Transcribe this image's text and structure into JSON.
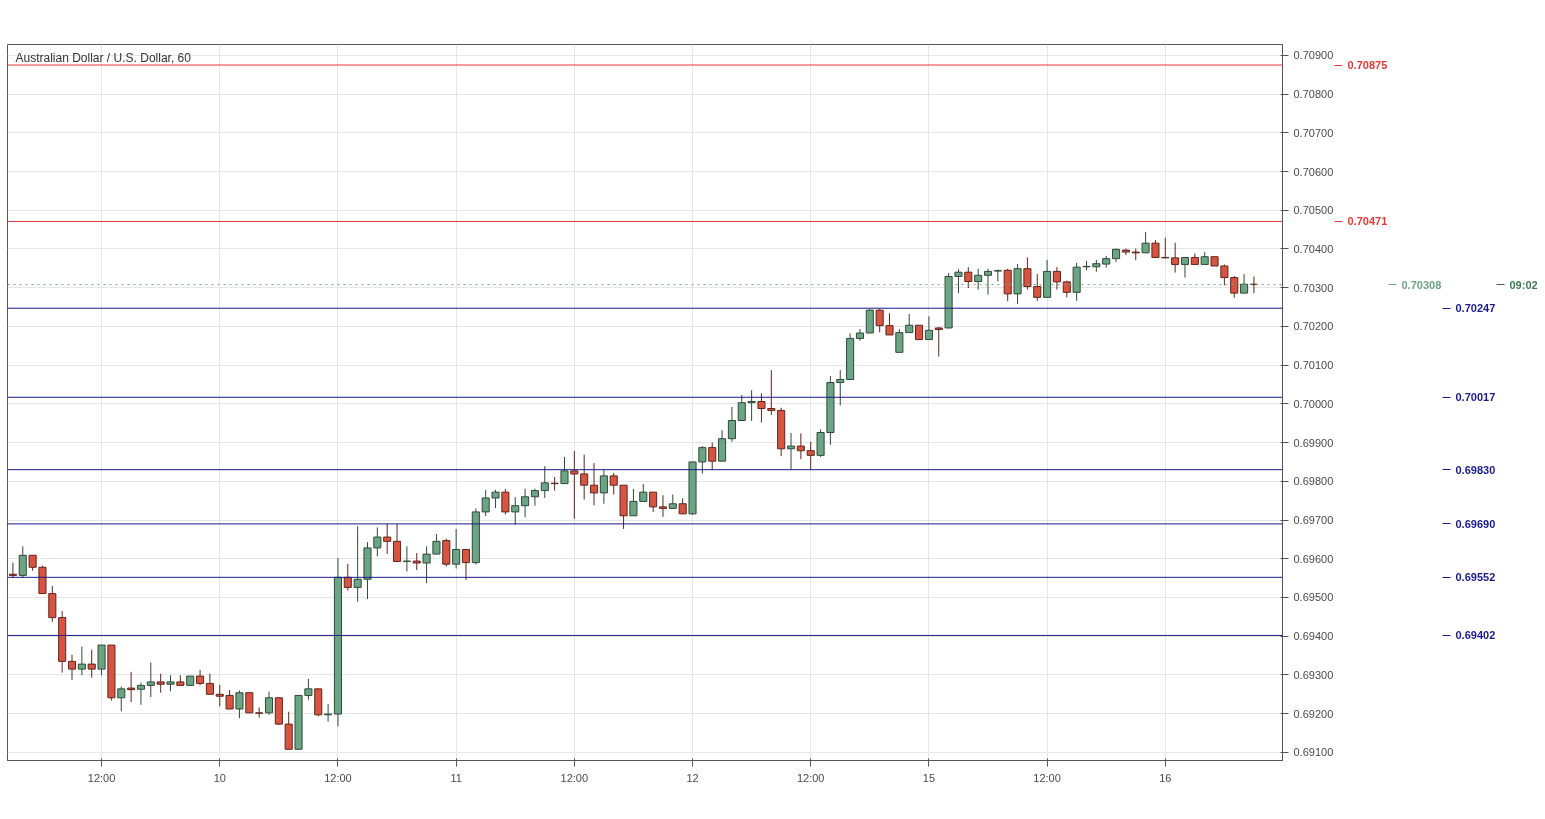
{
  "chart_data": {
    "type": "candlestick",
    "title": "Australian Dollar / U.S. Dollar, 60",
    "categories": [
      null,
      null,
      null,
      null,
      null,
      null,
      null,
      null,
      null,
      "12:00",
      null,
      null,
      null,
      null,
      null,
      null,
      null,
      null,
      null,
      null,
      null,
      "10",
      null,
      null,
      null,
      null,
      null,
      null,
      null,
      null,
      null,
      null,
      null,
      "12:00",
      null,
      null,
      null,
      null,
      null,
      null,
      null,
      null,
      null,
      null,
      null,
      "11",
      null,
      null,
      null,
      null,
      null,
      null,
      null,
      null,
      null,
      null,
      null,
      "12:00",
      null,
      null,
      null,
      null,
      null,
      null,
      null,
      null,
      null,
      null,
      null,
      "12",
      null,
      null,
      null,
      null,
      null,
      null,
      null,
      null,
      null,
      null,
      null,
      "12:00",
      null,
      null,
      null,
      null,
      null,
      null,
      null,
      null,
      null,
      null,
      null,
      "15",
      null,
      null,
      null,
      null,
      null,
      null,
      null,
      null,
      null,
      null,
      null,
      "12:00",
      null,
      null,
      null,
      null,
      null,
      null,
      null,
      null,
      null,
      null,
      null,
      "16",
      null,
      null,
      null,
      null,
      null,
      null,
      null,
      null,
      null
    ],
    "ohlc": [
      [
        0.6956,
        0.6959,
        0.6955,
        0.69557
      ],
      [
        0.69557,
        0.69632,
        0.69551,
        0.69609
      ],
      [
        0.69609,
        0.69609,
        0.69569,
        0.69578
      ],
      [
        0.69578,
        0.69582,
        0.6951,
        0.6951
      ],
      [
        0.6951,
        0.6953,
        0.69437,
        0.69448
      ],
      [
        0.69448,
        0.69465,
        0.69306,
        0.69335
      ],
      [
        0.69335,
        0.69352,
        0.69287,
        0.69315
      ],
      [
        0.69315,
        0.69373,
        0.69299,
        0.69328
      ],
      [
        0.69328,
        0.69365,
        0.69293,
        0.69315
      ],
      [
        0.69315,
        0.69377,
        0.69299,
        0.69377
      ],
      [
        0.69377,
        0.69377,
        0.69234,
        0.69241
      ],
      [
        0.69241,
        0.6927,
        0.69206,
        0.69264
      ],
      [
        0.69266,
        0.69308,
        0.6923,
        0.69262
      ],
      [
        0.69263,
        0.6928,
        0.69223,
        0.69273
      ],
      [
        0.69273,
        0.69332,
        0.69243,
        0.69282
      ],
      [
        0.69282,
        0.69303,
        0.69254,
        0.69276
      ],
      [
        0.69276,
        0.69299,
        0.69258,
        0.69282
      ],
      [
        0.69282,
        0.69299,
        0.69273,
        0.69273
      ],
      [
        0.69273,
        0.69297,
        0.69273,
        0.69297
      ],
      [
        0.69297,
        0.69313,
        0.69273,
        0.69278
      ],
      [
        0.69278,
        0.69303,
        0.6925,
        0.6925
      ],
      [
        0.6925,
        0.69274,
        0.69219,
        0.69245
      ],
      [
        0.69247,
        0.69261,
        0.69212,
        0.69212
      ],
      [
        0.69212,
        0.6926,
        0.69188,
        0.69254
      ],
      [
        0.69254,
        0.69254,
        0.69202,
        0.69202
      ],
      [
        0.69202,
        0.69216,
        0.6919,
        0.69201
      ],
      [
        0.69202,
        0.69257,
        0.69197,
        0.69241
      ],
      [
        0.69241,
        0.69241,
        0.69171,
        0.69173
      ],
      [
        0.69173,
        0.69205,
        0.69108,
        0.69108
      ],
      [
        0.69108,
        0.69248,
        0.69108,
        0.69247
      ],
      [
        0.69247,
        0.6929,
        0.69236,
        0.69264
      ],
      [
        0.69264,
        0.69264,
        0.69193,
        0.69197
      ],
      [
        0.69197,
        0.69225,
        0.69179,
        0.69199
      ],
      [
        0.69199,
        0.69602,
        0.69167,
        0.69552
      ],
      [
        0.69552,
        0.69587,
        0.69518,
        0.69526
      ],
      [
        0.69526,
        0.69684,
        0.69489,
        0.69547
      ],
      [
        0.69547,
        0.69643,
        0.69496,
        0.69628
      ],
      [
        0.69628,
        0.69681,
        0.69606,
        0.69656
      ],
      [
        0.69656,
        0.6969,
        0.69612,
        0.69645
      ],
      [
        0.69645,
        0.6969,
        0.69593,
        0.69593
      ],
      [
        0.69593,
        0.69632,
        0.69567,
        0.69594
      ],
      [
        0.69594,
        0.69615,
        0.69571,
        0.69589
      ],
      [
        0.69589,
        0.69632,
        0.69537,
        0.69612
      ],
      [
        0.69612,
        0.69664,
        0.69612,
        0.69645
      ],
      [
        0.69647,
        0.69652,
        0.6958,
        0.69586
      ],
      [
        0.69586,
        0.69677,
        0.69575,
        0.69624
      ],
      [
        0.69624,
        0.69624,
        0.69545,
        0.6959
      ],
      [
        0.6959,
        0.6973,
        0.69585,
        0.69721
      ],
      [
        0.69721,
        0.69778,
        0.6971,
        0.69757
      ],
      [
        0.69757,
        0.69778,
        0.69731,
        0.69772
      ],
      [
        0.69772,
        0.6978,
        0.69714,
        0.69721
      ],
      [
        0.69721,
        0.69759,
        0.69688,
        0.69737
      ],
      [
        0.69737,
        0.69781,
        0.69707,
        0.6976
      ],
      [
        0.6976,
        0.69781,
        0.69737,
        0.69776
      ],
      [
        0.69776,
        0.69839,
        0.69757,
        0.69796
      ],
      [
        0.69795,
        0.69811,
        0.69776,
        0.69794
      ],
      [
        0.69794,
        0.69863,
        0.69794,
        0.69827
      ],
      [
        0.69827,
        0.69878,
        0.69703,
        0.69819
      ],
      [
        0.69819,
        0.69869,
        0.69753,
        0.6979
      ],
      [
        0.6979,
        0.69847,
        0.69738,
        0.6977
      ],
      [
        0.6977,
        0.6983,
        0.69742,
        0.69814
      ],
      [
        0.69814,
        0.69822,
        0.69766,
        0.6979
      ],
      [
        0.6979,
        0.6979,
        0.69677,
        0.69711
      ],
      [
        0.69711,
        0.6978,
        0.69711,
        0.69748
      ],
      [
        0.69748,
        0.69793,
        0.69748,
        0.69772
      ],
      [
        0.69772,
        0.69772,
        0.69721,
        0.69734
      ],
      [
        0.69734,
        0.69764,
        0.69708,
        0.6973
      ],
      [
        0.6973,
        0.69766,
        0.69729,
        0.69742
      ],
      [
        0.69742,
        0.69756,
        0.69716,
        0.69716
      ],
      [
        0.69716,
        0.6985,
        0.69713,
        0.6985
      ],
      [
        0.6985,
        0.69891,
        0.6982,
        0.69887
      ],
      [
        0.69887,
        0.699,
        0.69829,
        0.69852
      ],
      [
        0.69852,
        0.69932,
        0.69852,
        0.6991
      ],
      [
        0.6991,
        0.69992,
        0.69902,
        0.69957
      ],
      [
        0.69957,
        0.70023,
        0.69957,
        0.70003
      ],
      [
        0.70003,
        0.70035,
        0.69956,
        0.70006
      ],
      [
        0.70006,
        0.70027,
        0.69952,
        0.69988
      ],
      [
        0.69988,
        0.70087,
        0.69971,
        0.69983
      ],
      [
        0.69983,
        0.6999,
        0.69865,
        0.69884
      ],
      [
        0.69884,
        0.69925,
        0.6983,
        0.69891
      ],
      [
        0.69891,
        0.69924,
        0.69857,
        0.69879
      ],
      [
        0.69879,
        0.69902,
        0.6983,
        0.69867
      ],
      [
        0.69867,
        0.69934,
        0.69863,
        0.69926
      ],
      [
        0.69926,
        0.70072,
        0.69894,
        0.70055
      ],
      [
        0.70055,
        0.70087,
        0.69996,
        0.70063
      ],
      [
        0.70063,
        0.70182,
        0.70063,
        0.70169
      ],
      [
        0.70169,
        0.70193,
        0.70163,
        0.70183
      ],
      [
        0.70183,
        0.70245,
        0.70183,
        0.70242
      ],
      [
        0.70242,
        0.70245,
        0.70185,
        0.70202
      ],
      [
        0.70202,
        0.70234,
        0.70178,
        0.70178
      ],
      [
        0.70133,
        0.70193,
        0.70133,
        0.70184
      ],
      [
        0.70184,
        0.70232,
        0.70184,
        0.70203
      ],
      [
        0.70203,
        0.70203,
        0.70166,
        0.70166
      ],
      [
        0.70166,
        0.70226,
        0.70166,
        0.7019
      ],
      [
        0.70196,
        0.70198,
        0.70122,
        0.70192
      ],
      [
        0.70196,
        0.70338,
        0.70195,
        0.70329
      ],
      [
        0.70329,
        0.70348,
        0.70286,
        0.7034
      ],
      [
        0.7034,
        0.70353,
        0.70299,
        0.70316
      ],
      [
        0.70316,
        0.70349,
        0.70295,
        0.70332
      ],
      [
        0.70332,
        0.70349,
        0.70282,
        0.70342
      ],
      [
        0.70343,
        0.70347,
        0.70316,
        0.70344
      ],
      [
        0.70345,
        0.70349,
        0.70265,
        0.70284
      ],
      [
        0.70284,
        0.70361,
        0.70258,
        0.70349
      ],
      [
        0.70349,
        0.70378,
        0.70295,
        0.70303
      ],
      [
        0.70303,
        0.70335,
        0.70266,
        0.70275
      ],
      [
        0.70275,
        0.70372,
        0.70275,
        0.70342
      ],
      [
        0.70342,
        0.70353,
        0.70295,
        0.70315
      ],
      [
        0.70315,
        0.70318,
        0.70275,
        0.70288
      ],
      [
        0.70288,
        0.70364,
        0.70266,
        0.70353
      ],
      [
        0.70354,
        0.70369,
        0.70345,
        0.70355
      ],
      [
        0.70354,
        0.70372,
        0.70341,
        0.70362
      ],
      [
        0.70361,
        0.70382,
        0.70352,
        0.70375
      ],
      [
        0.70375,
        0.70401,
        0.70366,
        0.70399
      ],
      [
        0.70397,
        0.70401,
        0.70384,
        0.70392
      ],
      [
        0.70392,
        0.70401,
        0.70371,
        0.7039
      ],
      [
        0.7039,
        0.70444,
        0.7039,
        0.70415
      ],
      [
        0.70415,
        0.70423,
        0.70378,
        0.70378
      ],
      [
        0.70378,
        0.70429,
        0.70376,
        0.70377
      ],
      [
        0.70377,
        0.70416,
        0.70339,
        0.7036
      ],
      [
        0.7036,
        0.70378,
        0.70326,
        0.70378
      ],
      [
        0.70378,
        0.70388,
        0.7036,
        0.7036
      ],
      [
        0.7036,
        0.70392,
        0.7036,
        0.7038
      ],
      [
        0.7038,
        0.7038,
        0.70356,
        0.70356
      ],
      [
        0.70356,
        0.7036,
        0.70306,
        0.70326
      ],
      [
        0.70326,
        0.7033,
        0.70274,
        0.70286
      ],
      [
        0.70286,
        0.70335,
        0.70286,
        0.70309
      ],
      [
        0.70309,
        0.70329,
        0.70286,
        0.70308
      ]
    ],
    "colors": [
      "#d75442",
      "#6ba583",
      "#d75442",
      "#d75442",
      "#d75442",
      "#d75442",
      "#d75442",
      "#6ba583",
      "#d75442",
      "#6ba583",
      "#d75442",
      "#6ba583",
      "#d75442",
      "#6ba583",
      "#6ba583",
      "#d75442",
      "#6ba583",
      "#d75442",
      "#6ba583",
      "#d75442",
      "#d75442",
      "#d75442",
      "#d75442",
      "#6ba583",
      "#d75442",
      "#d75442",
      "#6ba583",
      "#d75442",
      "#d75442",
      "#6ba583",
      "#6ba583",
      "#d75442",
      "#6ba583",
      "#6ba583",
      "#d75442",
      "#6ba583",
      "#6ba583",
      "#6ba583",
      "#d75442",
      "#d75442",
      "#6ba583",
      "#d75442",
      "#6ba583",
      "#6ba583",
      "#d75442",
      "#6ba583",
      "#d75442",
      "#6ba583",
      "#6ba583",
      "#6ba583",
      "#d75442",
      "#6ba583",
      "#6ba583",
      "#6ba583",
      "#6ba583",
      "#d75442",
      "#6ba583",
      "#d75442",
      "#d75442",
      "#d75442",
      "#6ba583",
      "#d75442",
      "#d75442",
      "#6ba583",
      "#6ba583",
      "#d75442",
      "#d75442",
      "#6ba583",
      "#d75442",
      "#6ba583",
      "#6ba583",
      "#d75442",
      "#6ba583",
      "#6ba583",
      "#6ba583",
      "#6ba583",
      "#d75442",
      "#d75442",
      "#d75442",
      "#6ba583",
      "#d75442",
      "#d75442",
      "#6ba583",
      "#6ba583",
      "#6ba583",
      "#6ba583",
      "#6ba583",
      "#6ba583",
      "#d75442",
      "#d75442",
      "#6ba583",
      "#6ba583",
      "#d75442",
      "#6ba583",
      "#d75442",
      "#6ba583",
      "#6ba583",
      "#d75442",
      "#6ba583",
      "#6ba583",
      "#6ba583",
      "#d75442",
      "#6ba583",
      "#d75442",
      "#d75442",
      "#6ba583",
      "#d75442",
      "#d75442",
      "#6ba583",
      "#6ba583",
      "#6ba583",
      "#6ba583",
      "#6ba583",
      "#d75442",
      "#d75442",
      "#6ba583",
      "#d75442",
      "#d75442",
      "#d75442",
      "#6ba583",
      "#d75442",
      "#6ba583",
      "#d75442",
      "#d75442",
      "#d75442",
      "#6ba583",
      "#d75442"
    ],
    "ylim": [
      0.69079,
      0.70928
    ],
    "yticks": [
      {
        "value": 0.691,
        "label": "0.69100"
      },
      {
        "value": 0.692,
        "label": "0.69200"
      },
      {
        "value": 0.693,
        "label": "0.69300"
      },
      {
        "value": 0.694,
        "label": "0.69400"
      },
      {
        "value": 0.695,
        "label": "0.69500"
      },
      {
        "value": 0.696,
        "label": "0.69600"
      },
      {
        "value": 0.697,
        "label": "0.69700"
      },
      {
        "value": 0.698,
        "label": "0.69800"
      },
      {
        "value": 0.699,
        "label": "0.69900"
      },
      {
        "value": 0.7,
        "label": "0.70000"
      },
      {
        "value": 0.701,
        "label": "0.70100"
      },
      {
        "value": 0.702,
        "label": "0.70200"
      },
      {
        "value": 0.703,
        "label": "0.70300"
      },
      {
        "value": 0.704,
        "label": "0.70400"
      },
      {
        "value": 0.705,
        "label": "0.70500"
      },
      {
        "value": 0.706,
        "label": "0.70600"
      },
      {
        "value": 0.707,
        "label": "0.70700"
      },
      {
        "value": 0.708,
        "label": "0.70800"
      },
      {
        "value": 0.709,
        "label": "0.70900"
      }
    ],
    "ref_lines": [
      {
        "axis": "y",
        "value": 0.70875,
        "label": "0.70875",
        "color": "#e53935"
      },
      {
        "axis": "y",
        "value": 0.70471,
        "label": "0.70471",
        "color": "#e53935"
      },
      {
        "axis": "y",
        "value": 0.70308,
        "label": "0.70308",
        "color": "#6ba583",
        "line_style": "dotted"
      },
      {
        "axis": "y",
        "value": 0.70247,
        "label": "0.70247",
        "color": "#1a1a8c"
      },
      {
        "axis": "y",
        "value": 0.70017,
        "label": "0.70017",
        "color": "#1a1a8c"
      },
      {
        "axis": "y",
        "value": 0.6983,
        "label": "0.69830",
        "color": "#1a1a8c"
      },
      {
        "axis": "y",
        "value": 0.6969,
        "label": "0.69690",
        "color": "#1a1a8c"
      },
      {
        "axis": "y",
        "value": 0.69552,
        "label": "0.69552",
        "color": "#1a1a8c"
      },
      {
        "axis": "y",
        "value": 0.69402,
        "label": "0.69402",
        "color": "#1a1a8c"
      }
    ],
    "annotations": [
      "09:02"
    ],
    "grid": true
  }
}
